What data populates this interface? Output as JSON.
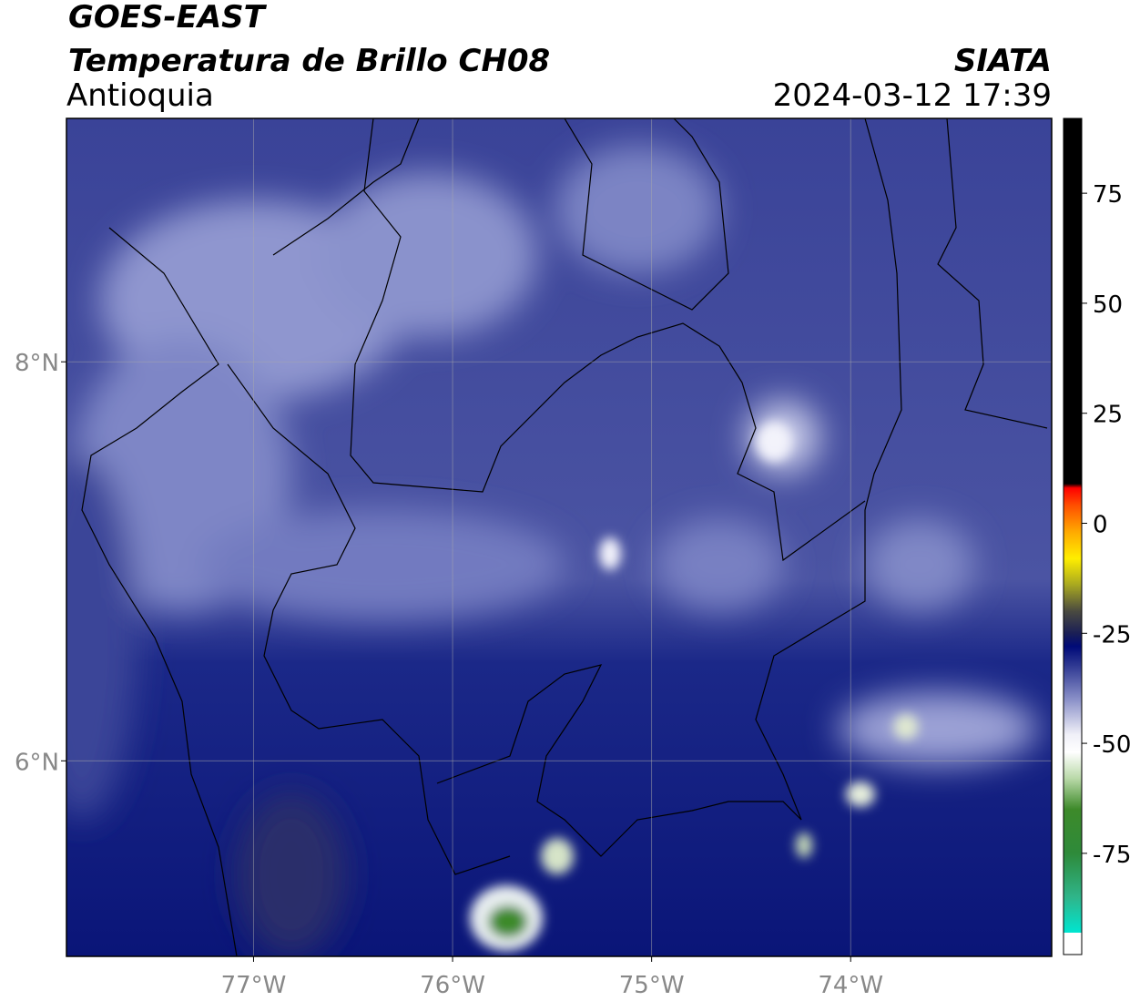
{
  "chart_data": {
    "type": "map",
    "title": "GOES-EAST",
    "subtitle": "Temperatura de Brillo CH08",
    "region": "Antioquia",
    "source": "SIATA",
    "datetime": "2024-03-12 17:39",
    "xlim": [
      -77.94,
      -72.99
    ],
    "ylim": [
      5.02,
      9.22
    ],
    "xticks": [
      {
        "value": -77,
        "label": "77°W"
      },
      {
        "value": -76,
        "label": "76°W"
      },
      {
        "value": -75,
        "label": "75°W"
      },
      {
        "value": -74,
        "label": "74°W"
      }
    ],
    "yticks": [
      {
        "value": 6,
        "label": "6°N"
      },
      {
        "value": 8,
        "label": "8°N"
      }
    ],
    "grid": true,
    "colorbar": {
      "lim": [
        -98,
        92
      ],
      "ticks": [
        -75,
        -50,
        -25,
        0,
        25,
        50,
        75
      ],
      "stops": [
        [
          -98,
          "#ffffff"
        ],
        [
          -93,
          "#ffffff"
        ],
        [
          -93,
          "#00e5d0"
        ],
        [
          -85,
          "#2fb58a"
        ],
        [
          -75,
          "#2e8a3a"
        ],
        [
          -65,
          "#3d8a2a"
        ],
        [
          -58,
          "#b9d9a8"
        ],
        [
          -52,
          "#ffffff"
        ],
        [
          -48,
          "#f0f0f8"
        ],
        [
          -40,
          "#8a90c8"
        ],
        [
          -32,
          "#2b3590"
        ],
        [
          -28,
          "#000a78"
        ],
        [
          -25,
          "#1a1f55"
        ],
        [
          -20,
          "#4a4a40"
        ],
        [
          -14,
          "#a8a820"
        ],
        [
          -8,
          "#ffee00"
        ],
        [
          -2,
          "#ffaa00"
        ],
        [
          4,
          "#ff5000"
        ],
        [
          8,
          "#ff0000"
        ],
        [
          9,
          "#000000"
        ],
        [
          92,
          "#000000"
        ]
      ]
    }
  }
}
